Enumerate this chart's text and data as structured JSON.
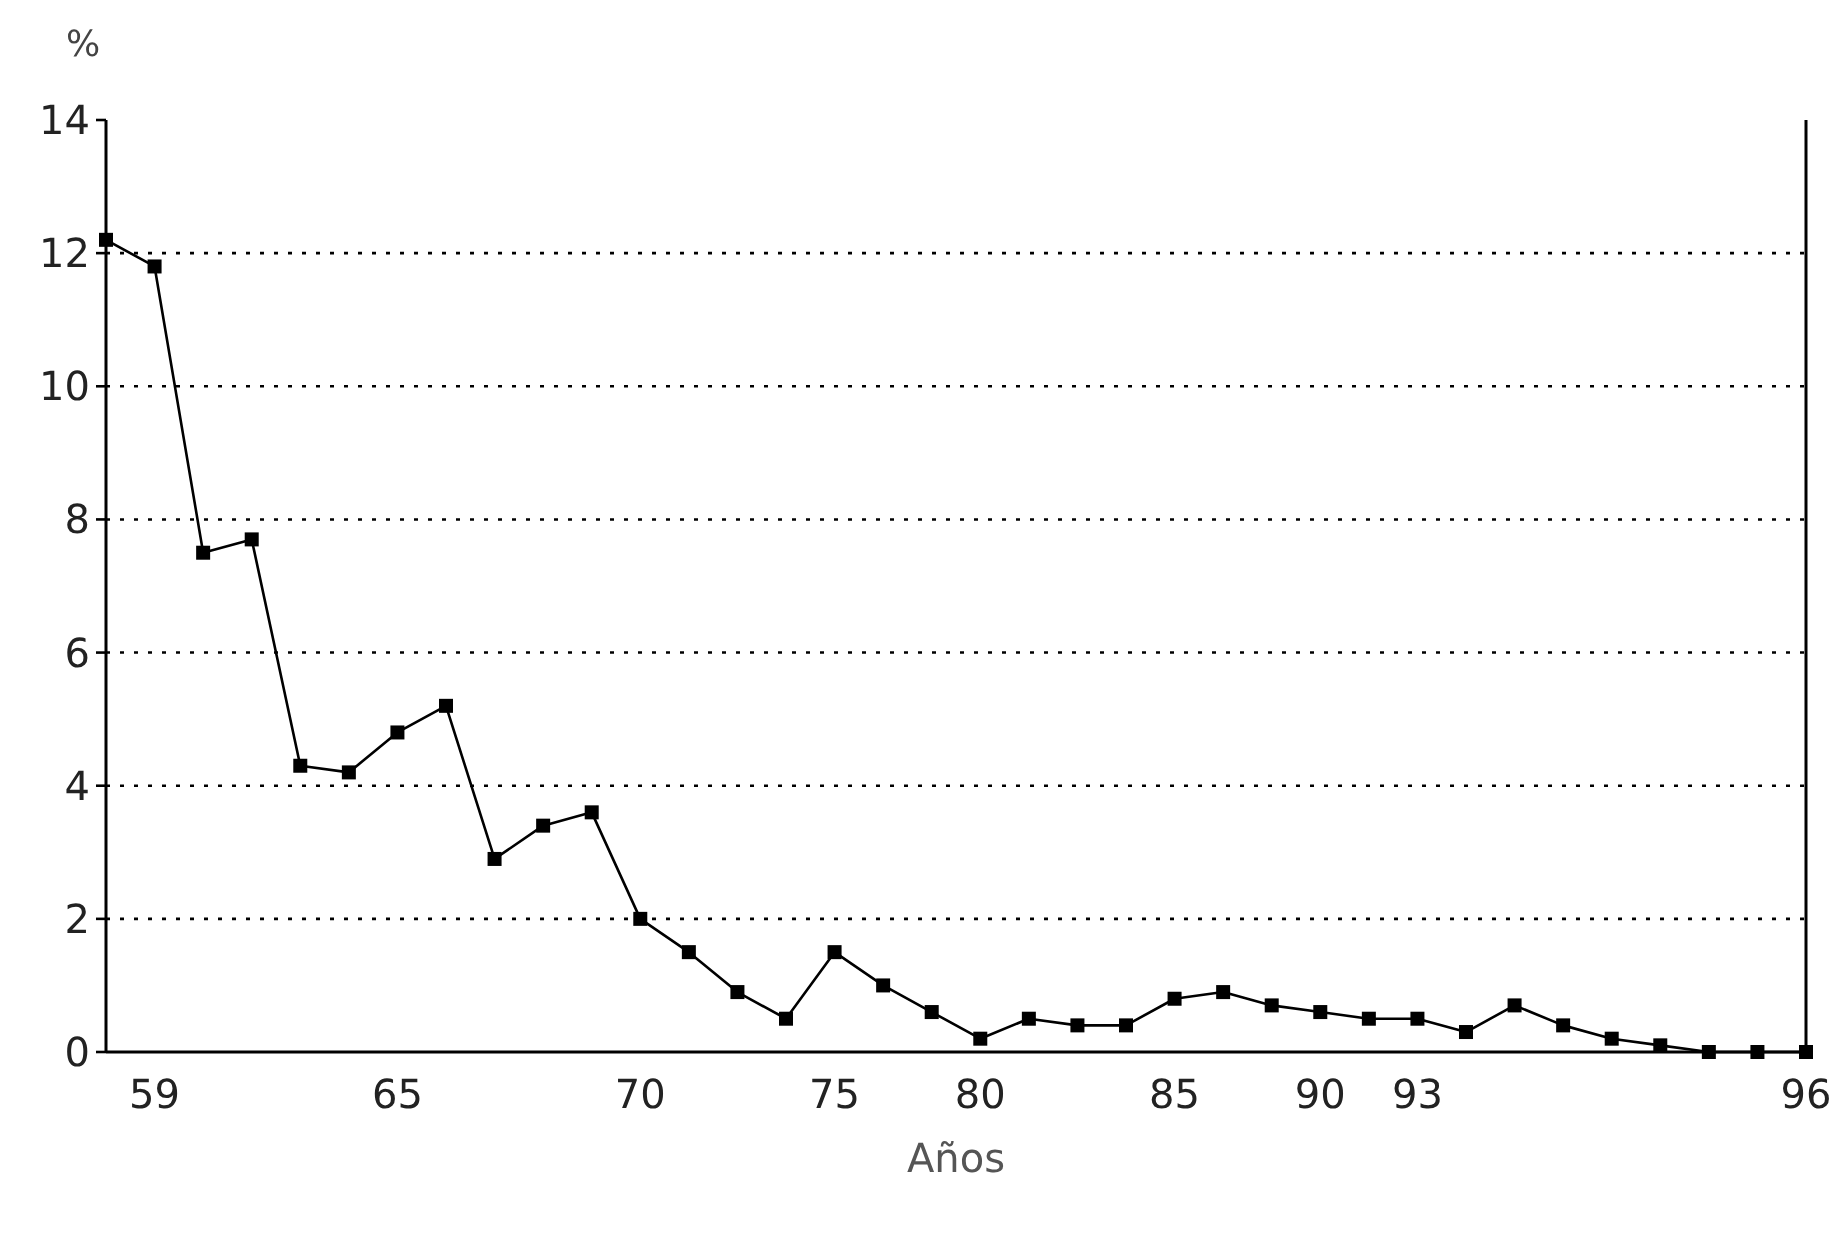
{
  "chart_data": {
    "type": "line",
    "xlabel": "Años",
    "ylabel": "%",
    "categories": [
      null,
      "59",
      null,
      null,
      null,
      null,
      "65",
      null,
      null,
      null,
      null,
      "70",
      null,
      null,
      null,
      "75",
      null,
      null,
      "80",
      null,
      null,
      null,
      "85",
      null,
      null,
      "90",
      null,
      "93",
      null,
      null,
      null,
      null,
      null,
      null,
      null,
      "96"
    ],
    "series": [
      {
        "color": "#000000",
        "values": [
          12.2,
          11.8,
          7.5,
          7.7,
          4.3,
          4.2,
          4.8,
          5.2,
          2.9,
          3.4,
          3.6,
          2.0,
          1.5,
          0.9,
          0.5,
          1.5,
          1.0,
          0.6,
          0.2,
          0.5,
          0.4,
          0.4,
          0.8,
          0.9,
          0.7,
          0.6,
          0.5,
          0.5,
          0.3,
          0.7,
          0.4,
          0.2,
          0.1,
          0,
          0,
          0
        ]
      }
    ],
    "ylim": [
      0,
      14
    ],
    "yticks": [
      0,
      2,
      4,
      6,
      8,
      10,
      12,
      14
    ],
    "grid": "y",
    "marker": "square",
    "line_style": "solid"
  }
}
